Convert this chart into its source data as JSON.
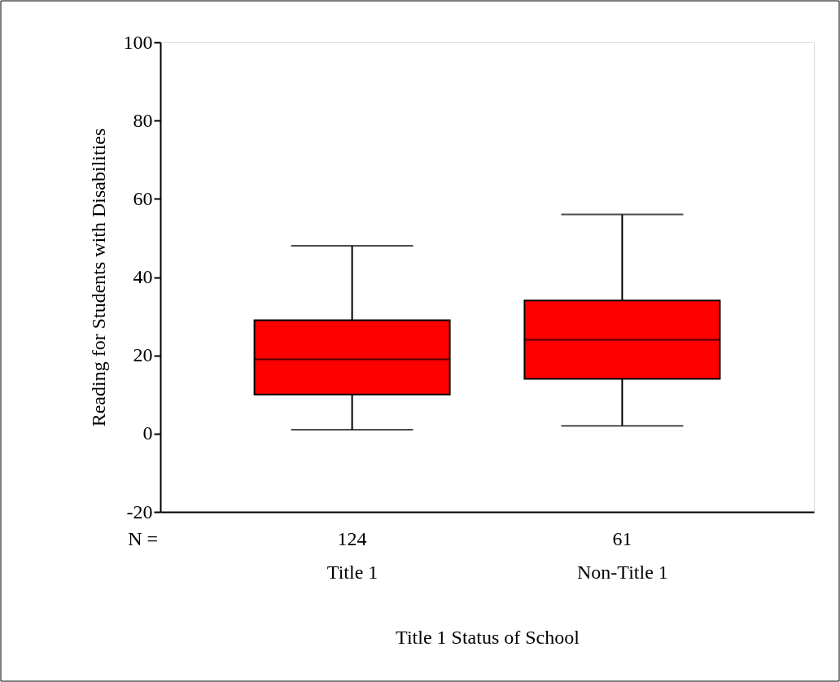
{
  "chart_data": {
    "type": "box",
    "xlabel": "Title 1 Status of School",
    "ylabel": "Reading for Students with Disabilities",
    "categories": [
      "Title 1",
      "Non-Title 1"
    ],
    "series": [
      {
        "color": "#ff0000",
        "boxes": [
          {
            "low": 1,
            "q1": 10,
            "median": 19,
            "q3": 29,
            "high": 48
          },
          {
            "low": 2,
            "q1": 14,
            "median": 24,
            "q3": 34,
            "high": 56
          }
        ]
      }
    ],
    "ylim": [
      -20,
      100
    ],
    "yticks": [
      -20,
      0,
      20,
      40,
      60,
      80,
      100
    ],
    "grid": false,
    "annotations": [
      "N =",
      "124",
      "61"
    ]
  }
}
